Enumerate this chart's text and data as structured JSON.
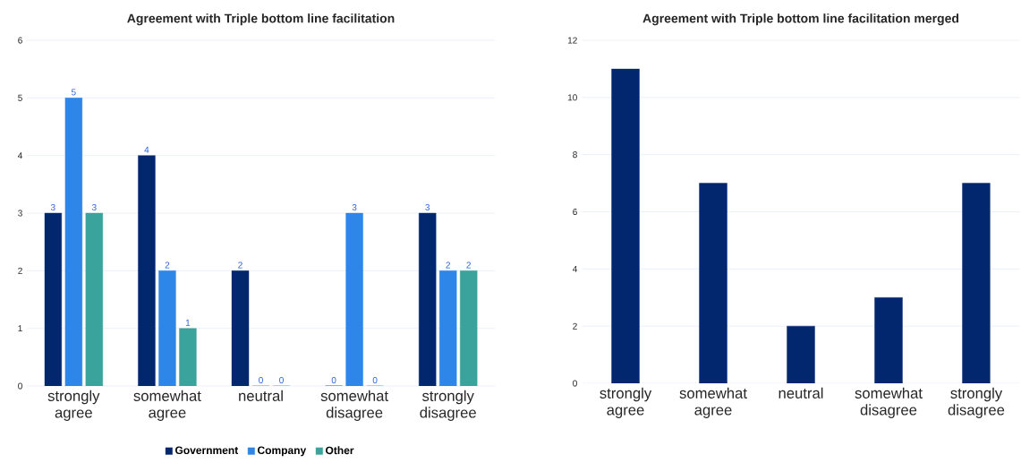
{
  "chart_data": [
    {
      "type": "bar",
      "title": "Agreement with Triple bottom line facilitation",
      "categories": [
        "strongly agree",
        "somewhat agree",
        "neutral",
        "somewhat disagree",
        "strongly disagree"
      ],
      "series": [
        {
          "name": "Government",
          "color": "#03276e",
          "values": [
            3,
            4,
            2,
            0,
            3
          ]
        },
        {
          "name": "Company",
          "color": "#2e86e8",
          "values": [
            5,
            2,
            0,
            3,
            2
          ]
        },
        {
          "name": "Other",
          "color": "#3aa39b",
          "values": [
            3,
            1,
            0,
            0,
            2
          ]
        }
      ],
      "ylim": [
        0,
        6
      ],
      "yticks": [
        0,
        1,
        2,
        3,
        4,
        5,
        6
      ],
      "grid": "y",
      "legend": "bottom",
      "data_labels": true
    },
    {
      "type": "bar",
      "title": "Agreement with Triple bottom line facilitation merged",
      "categories": [
        "strongly agree",
        "somewhat agree",
        "neutral",
        "somewhat disagree",
        "strongly disagree"
      ],
      "series": [
        {
          "color": "#03276e",
          "values": [
            11,
            7,
            2,
            3,
            7
          ]
        }
      ],
      "ylim": [
        0,
        12
      ],
      "yticks": [
        0,
        2,
        4,
        6,
        8,
        10,
        12
      ],
      "grid": "y"
    }
  ]
}
